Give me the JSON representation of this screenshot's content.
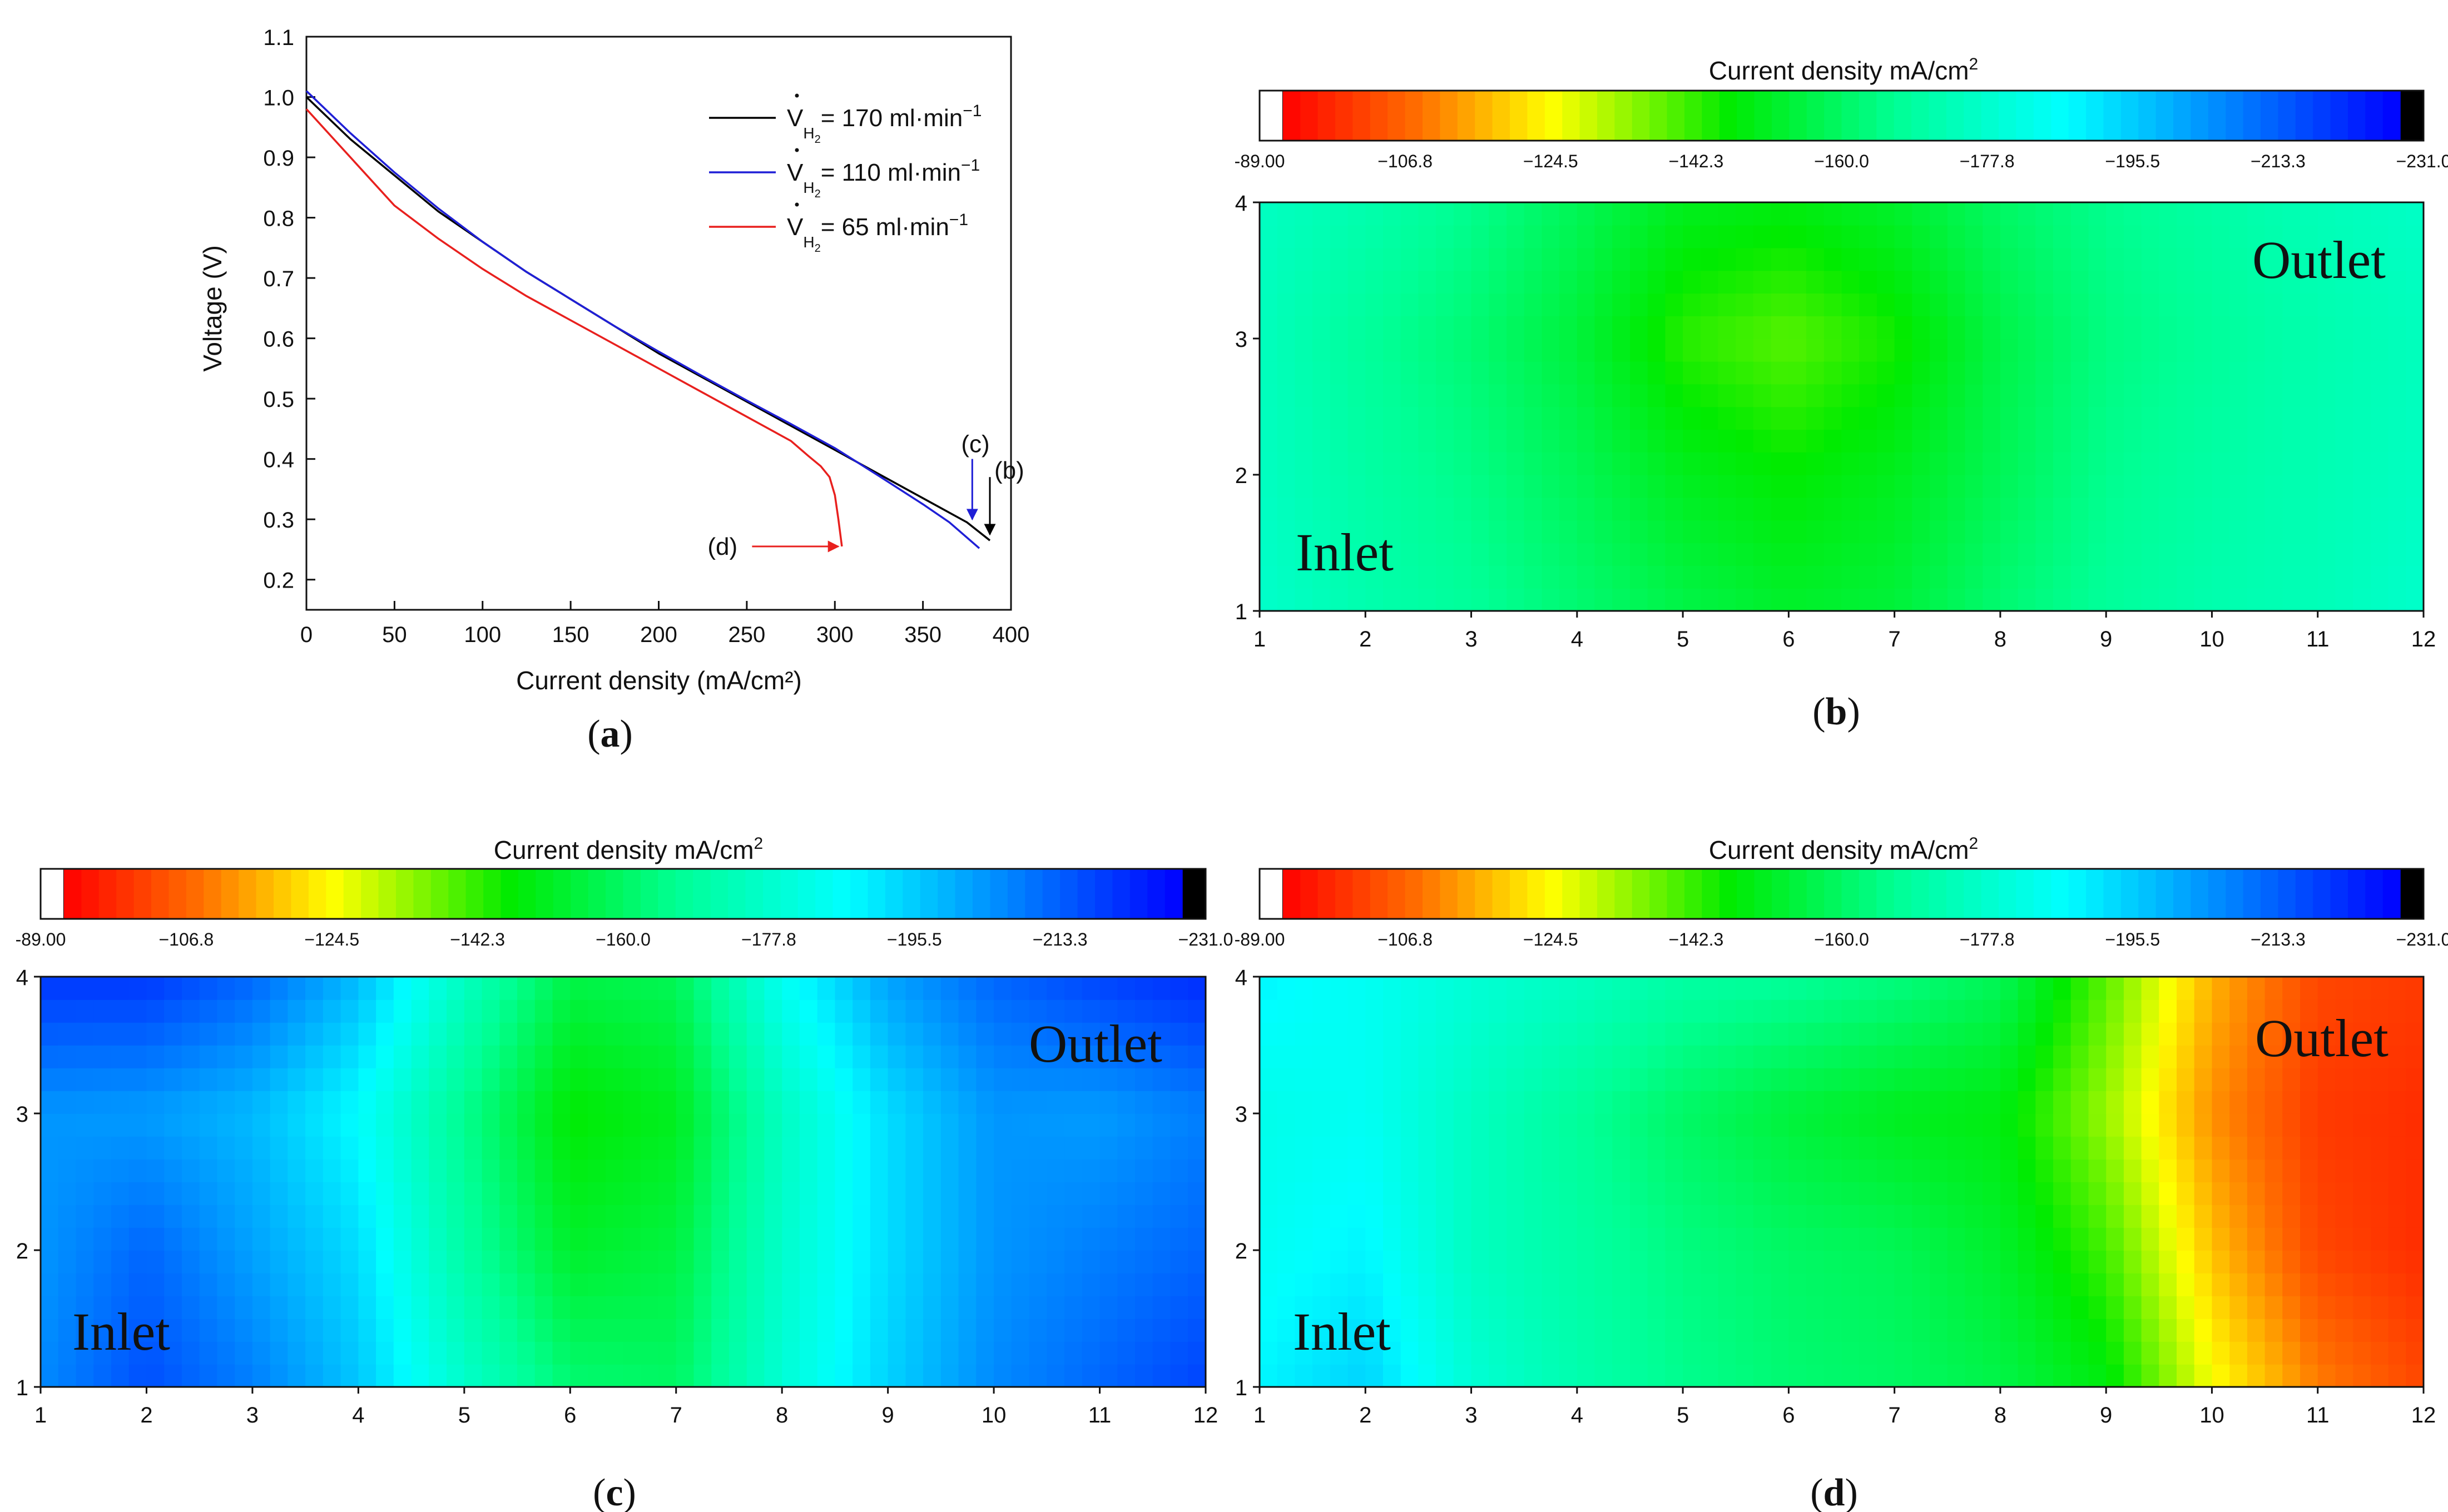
{
  "chart_data": [
    {
      "panel_id": "a",
      "type": "line",
      "panel_label": "a",
      "title": "",
      "xlabel": "Current density (mA/cm²)",
      "ylabel": "Voltage (V)",
      "xlim": [
        0,
        400
      ],
      "ylim": [
        0.15,
        1.1
      ],
      "xticks": [
        "0",
        "50",
        "100",
        "150",
        "200",
        "250",
        "300",
        "350",
        "400"
      ],
      "yticks": [
        "0.2",
        "0.3",
        "0.4",
        "0.5",
        "0.6",
        "0.7",
        "0.8",
        "0.9",
        "1.0",
        "1.1"
      ],
      "legend_position": "top-right",
      "series": [
        {
          "name": "V̇H₂= 170 ml·min⁻¹",
          "legend_value": "= 170 ml·min",
          "color": "#000000",
          "x": [
            0,
            25,
            50,
            75,
            100,
            125,
            150,
            175,
            200,
            225,
            250,
            275,
            300,
            325,
            350,
            375,
            388
          ],
          "y": [
            1.0,
            0.93,
            0.87,
            0.81,
            0.76,
            0.71,
            0.665,
            0.62,
            0.575,
            0.535,
            0.495,
            0.455,
            0.415,
            0.375,
            0.335,
            0.295,
            0.265
          ]
        },
        {
          "name": "V̇H₂= 110 ml·min⁻¹",
          "legend_value": "= 110 ml·min",
          "color": "#1f1fd6",
          "x": [
            0,
            25,
            50,
            75,
            100,
            125,
            150,
            175,
            200,
            225,
            250,
            275,
            300,
            325,
            350,
            365,
            382
          ],
          "y": [
            1.01,
            0.94,
            0.875,
            0.815,
            0.76,
            0.71,
            0.665,
            0.62,
            0.578,
            0.537,
            0.497,
            0.458,
            0.418,
            0.372,
            0.325,
            0.295,
            0.252
          ]
        },
        {
          "name": "V̇H₂= 65 ml·min⁻¹",
          "legend_value": "= 65 ml·min",
          "color": "#e8201e",
          "x": [
            0,
            25,
            50,
            75,
            100,
            125,
            150,
            175,
            200,
            225,
            250,
            275,
            285,
            292,
            297,
            300,
            302,
            304
          ],
          "y": [
            0.98,
            0.9,
            0.82,
            0.765,
            0.715,
            0.67,
            0.63,
            0.59,
            0.55,
            0.51,
            0.47,
            0.43,
            0.405,
            0.388,
            0.37,
            0.34,
            0.3,
            0.255
          ]
        }
      ],
      "annotations": [
        {
          "label": "(b)",
          "arrow_x": 388,
          "arrow_from_y": 0.37,
          "arrow_to_y": 0.275,
          "color": "#000000"
        },
        {
          "label": "(c)",
          "arrow_x": 378,
          "arrow_from_y": 0.4,
          "arrow_to_y": 0.3,
          "color": "#1f1fd6"
        },
        {
          "label": "(d)",
          "arrow_y": 0.255,
          "arrow_from_x": 253,
          "arrow_to_x": 302,
          "color": "#e8201e"
        }
      ]
    },
    {
      "panel_id": "b",
      "type": "heatmap",
      "panel_label": "b",
      "colorbar_title": "Current density mA/cm",
      "colorbar_ticks": [
        "-89.00",
        "−106.8",
        "−124.5",
        "−142.3",
        "−160.0",
        "−177.8",
        "−195.5",
        "−213.3",
        "−231.0"
      ],
      "xlim": [
        1,
        12
      ],
      "ylim": [
        1,
        4
      ],
      "xticks": [
        "1",
        "2",
        "3",
        "4",
        "5",
        "6",
        "7",
        "8",
        "9",
        "10",
        "11",
        "12"
      ],
      "yticks": [
        "1",
        "2",
        "3",
        "4"
      ],
      "inlet_label": "Inlet",
      "outlet_label": "Outlet",
      "grid_x": [
        1,
        2,
        3,
        4,
        5,
        6,
        7,
        8,
        9,
        10,
        11,
        12
      ],
      "grid_y": [
        1,
        2,
        3,
        4
      ],
      "values": [
        [
          -178,
          -172,
          -168,
          -162,
          -156,
          -152,
          -154,
          -162,
          -168,
          -172,
          -174,
          -178
        ],
        [
          -176,
          -170,
          -165,
          -158,
          -150,
          -146,
          -150,
          -158,
          -166,
          -170,
          -173,
          -176
        ],
        [
          -175,
          -168,
          -162,
          -154,
          -142,
          -138,
          -144,
          -156,
          -164,
          -168,
          -172,
          -175
        ],
        [
          -176,
          -172,
          -166,
          -158,
          -150,
          -148,
          -152,
          -160,
          -166,
          -170,
          -174,
          -177
        ]
      ]
    },
    {
      "panel_id": "c",
      "type": "heatmap",
      "panel_label": "c",
      "colorbar_title": "Current density mA/cm",
      "colorbar_ticks": [
        "-89.00",
        "−106.8",
        "−124.5",
        "−142.3",
        "−160.0",
        "−177.8",
        "−195.5",
        "−213.3",
        "−231.0"
      ],
      "xlim": [
        1,
        12
      ],
      "ylim": [
        1,
        4
      ],
      "xticks": [
        "1",
        "2",
        "3",
        "4",
        "5",
        "6",
        "7",
        "8",
        "9",
        "10",
        "11",
        "12"
      ],
      "yticks": [
        "1",
        "2",
        "3",
        "4"
      ],
      "inlet_label": "Inlet",
      "outlet_label": "Outlet",
      "grid_x": [
        1,
        2,
        3,
        4,
        5,
        6,
        7,
        8,
        9,
        10,
        11,
        12
      ],
      "grid_y": [
        1,
        2,
        3,
        4
      ],
      "values": [
        [
          -208,
          -218,
          -210,
          -198,
          -178,
          -162,
          -160,
          -180,
          -196,
          -208,
          -214,
          -220
        ],
        [
          -206,
          -214,
          -204,
          -194,
          -170,
          -152,
          -155,
          -178,
          -194,
          -206,
          -210,
          -214
        ],
        [
          -206,
          -205,
          -200,
          -188,
          -166,
          -146,
          -150,
          -176,
          -194,
          -206,
          -205,
          -210
        ],
        [
          -222,
          -222,
          -214,
          -200,
          -176,
          -156,
          -158,
          -186,
          -204,
          -214,
          -220,
          -224
        ]
      ]
    },
    {
      "panel_id": "d",
      "type": "heatmap",
      "panel_label": "d",
      "colorbar_title": "Current density mA/cm",
      "colorbar_ticks": [
        "-89.00",
        "−106.8",
        "−124.5",
        "−142.3",
        "−160.0",
        "−177.8",
        "−195.5",
        "−213.3",
        "−231.0"
      ],
      "xlim": [
        1,
        12
      ],
      "ylim": [
        1,
        4
      ],
      "xticks": [
        "1",
        "2",
        "3",
        "4",
        "5",
        "6",
        "7",
        "8",
        "9",
        "10",
        "11",
        "12"
      ],
      "yticks": [
        "1",
        "2",
        "3",
        "4"
      ],
      "inlet_label": "Inlet",
      "outlet_label": "Outlet",
      "grid_x": [
        1,
        2,
        3,
        4,
        5,
        6,
        7,
        8,
        9,
        10,
        11,
        12
      ],
      "grid_y": [
        1,
        2,
        3,
        4
      ],
      "values": [
        [
          -190,
          -196,
          -180,
          -172,
          -166,
          -162,
          -160,
          -156,
          -148,
          -124,
          -108,
          -100
        ],
        [
          -186,
          -190,
          -176,
          -170,
          -164,
          -160,
          -158,
          -152,
          -140,
          -116,
          -100,
          -96
        ],
        [
          -184,
          -186,
          -176,
          -168,
          -160,
          -154,
          -150,
          -148,
          -132,
          -110,
          -98,
          -96
        ],
        [
          -190,
          -186,
          -180,
          -176,
          -170,
          -168,
          -164,
          -158,
          -138,
          -114,
          -100,
          -98
        ]
      ]
    }
  ]
}
